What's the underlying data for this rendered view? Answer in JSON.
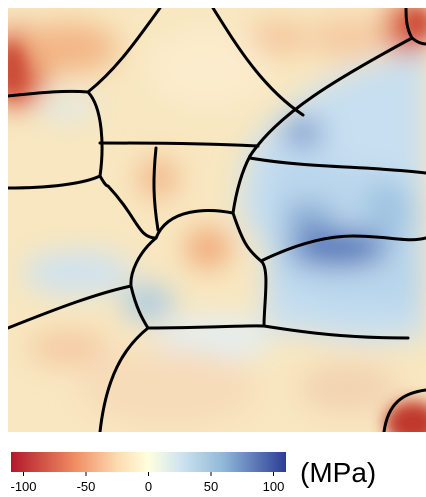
{
  "chart_data": {
    "type": "heatmap",
    "title": "",
    "colorbar": {
      "unit_label": "(MPa)",
      "range": [
        -110,
        110
      ],
      "ticks": [
        -100,
        -50,
        0,
        50,
        100
      ],
      "tick_labels": [
        "-100",
        "-50",
        "0",
        "50",
        "100"
      ],
      "stops": [
        {
          "value": -110,
          "color": "#b2182b"
        },
        {
          "value": -60,
          "color": "#ef8a62"
        },
        {
          "value": -25,
          "color": "#fddbb0"
        },
        {
          "value": 0,
          "color": "#ffffdd"
        },
        {
          "value": 25,
          "color": "#d1e5f0"
        },
        {
          "value": 60,
          "color": "#8fb8d8"
        },
        {
          "value": 110,
          "color": "#2c3d96"
        }
      ]
    },
    "field_colors": {
      "background": "#f8e7c0",
      "grain_boundary": "#000000"
    }
  }
}
